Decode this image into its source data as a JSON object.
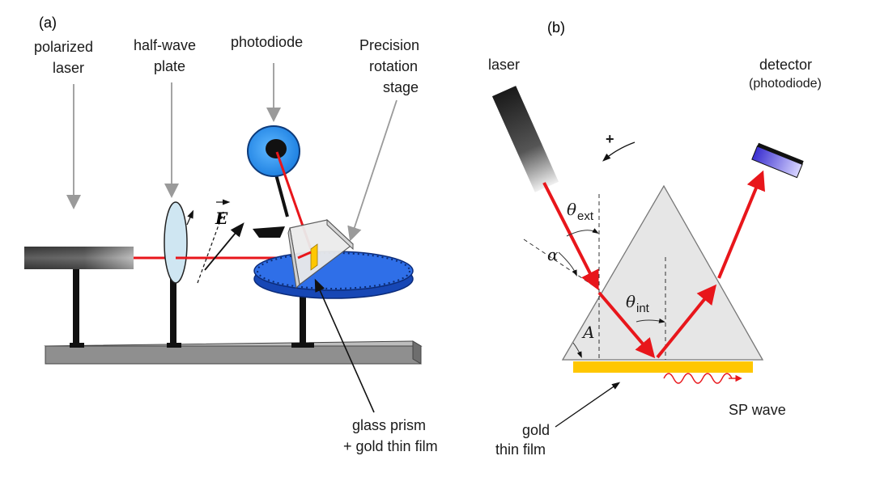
{
  "panel_a": {
    "label": "(a)",
    "polarized_laser": [
      "polarized",
      "laser"
    ],
    "half_wave_plate": [
      "half-wave",
      "plate"
    ],
    "photodiode": "photodiode",
    "rotation_stage": [
      "Precision",
      "rotation",
      "stage"
    ],
    "e_field": "E",
    "prism": [
      "glass prism",
      "+ gold thin film"
    ]
  },
  "panel_b": {
    "label": "(b)",
    "laser": "laser",
    "detector": [
      "detector",
      "(photodiode)"
    ],
    "plus": "+",
    "theta": "θ",
    "theta_ext_sub": "ext",
    "theta_int_sub": "int",
    "alpha": "α",
    "apex": "A",
    "sp_wave": "SP wave",
    "gold_film": [
      "gold",
      "thin film"
    ]
  },
  "colors": {
    "laser_beam": "#e8161b",
    "stage_blue": "#1f56c9",
    "gold": "#ffc700",
    "prism_fill": "#e6e6e6"
  }
}
